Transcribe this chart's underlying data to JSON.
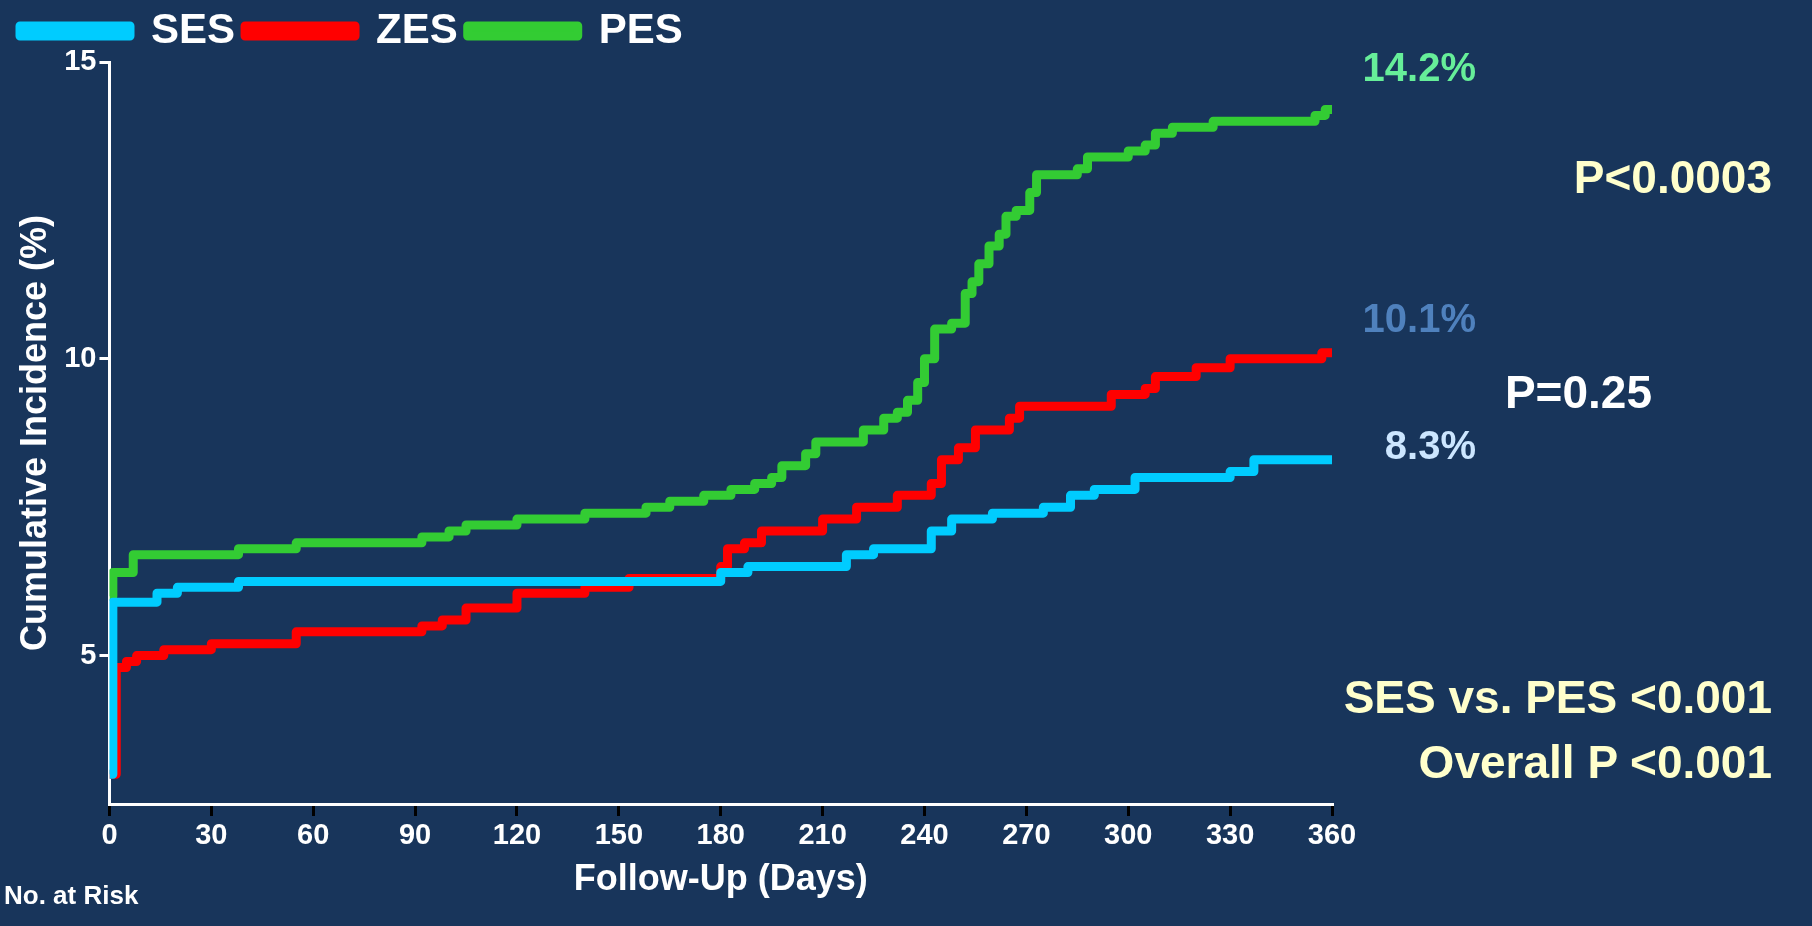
{
  "chart_data": {
    "type": "step",
    "xlabel": "Follow-Up (Days)",
    "ylabel": "Cumulative Incidence (%)",
    "xlim": [
      0,
      360
    ],
    "xticks": [
      0,
      30,
      60,
      90,
      120,
      150,
      180,
      210,
      240,
      270,
      300,
      330,
      360
    ],
    "ylim": [
      2.5,
      15
    ],
    "yticks": [
      5,
      10,
      15
    ],
    "grid": false,
    "legend": "top",
    "marker": "none",
    "line_style": "solid",
    "series": [
      {
        "name": "SES",
        "color": "#00ccff",
        "x": [
          0,
          1,
          14,
          20,
          38,
          180,
          188,
          217,
          225,
          242,
          248,
          260,
          275,
          283,
          290,
          302,
          330,
          337,
          360
        ],
        "values": [
          3,
          5.9,
          6.05,
          6.15,
          6.25,
          6.4,
          6.5,
          6.7,
          6.8,
          7.1,
          7.3,
          7.4,
          7.5,
          7.7,
          7.8,
          8.0,
          8.1,
          8.3,
          8.3
        ]
      },
      {
        "name": "ZES",
        "color": "#ff0000",
        "x": [
          0,
          2,
          5,
          8,
          16,
          30,
          55,
          92,
          98,
          105,
          120,
          140,
          153,
          180,
          182,
          187,
          192,
          210,
          220,
          232,
          242,
          245,
          250,
          255,
          265,
          268,
          295,
          305,
          308,
          320,
          330,
          357,
          360
        ],
        "values": [
          3,
          4.8,
          4.9,
          5.0,
          5.1,
          5.2,
          5.4,
          5.5,
          5.6,
          5.8,
          6.05,
          6.15,
          6.3,
          6.5,
          6.8,
          6.9,
          7.1,
          7.3,
          7.5,
          7.7,
          7.9,
          8.3,
          8.5,
          8.8,
          9.0,
          9.2,
          9.4,
          9.5,
          9.7,
          9.85,
          10.0,
          10.1,
          10.1
        ]
      },
      {
        "name": "PES",
        "color": "#33cc33",
        "x": [
          0,
          1,
          7,
          38,
          55,
          92,
          100,
          105,
          120,
          140,
          158,
          165,
          175,
          183,
          190,
          195,
          198,
          205,
          208,
          222,
          228,
          232,
          235,
          238,
          240,
          243,
          248,
          252,
          254,
          256,
          259,
          262,
          264,
          267,
          271,
          273,
          285,
          288,
          300,
          305,
          308,
          313,
          325,
          355,
          358,
          360
        ],
        "values": [
          6.0,
          6.4,
          6.7,
          6.8,
          6.9,
          7.0,
          7.1,
          7.2,
          7.3,
          7.4,
          7.5,
          7.6,
          7.7,
          7.8,
          7.9,
          8.0,
          8.2,
          8.4,
          8.6,
          8.8,
          9.0,
          9.1,
          9.3,
          9.6,
          10.0,
          10.5,
          10.6,
          11.1,
          11.3,
          11.6,
          11.9,
          12.1,
          12.4,
          12.5,
          12.8,
          13.1,
          13.2,
          13.4,
          13.5,
          13.6,
          13.8,
          13.9,
          14.0,
          14.1,
          14.2,
          14.2
        ]
      }
    ],
    "annotations": [
      "14.2%",
      "10.1%",
      "8.3%",
      "P<0.0003",
      "P=0.25",
      "SES vs. PES <0.001",
      "Overall P <0.001",
      "No. at Risk"
    ]
  }
}
